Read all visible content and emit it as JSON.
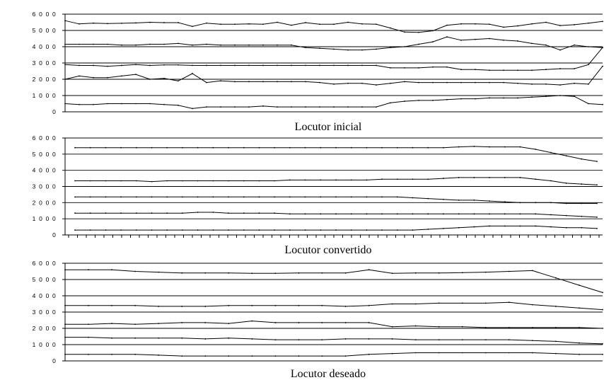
{
  "chart_data": [
    {
      "type": "line",
      "title": "Locutor inicial",
      "ylim": [
        0,
        6000
      ],
      "yticks": [
        "0",
        "1 0 0 0",
        "2 0 0 0",
        "3 0 0 0",
        "4 0 0 0",
        "5 0 0 0",
        "6 0 0 0"
      ],
      "grid": true,
      "series": [
        {
          "values": [
            5600,
            5400,
            5450,
            5420,
            5440,
            5460,
            5500,
            5480,
            5480,
            5250,
            5450,
            5380,
            5380,
            5400,
            5380,
            5500,
            5320,
            5480,
            5380,
            5380,
            5500,
            5400,
            5380,
            5150,
            4900,
            4880,
            4980,
            5320,
            5400,
            5400,
            5380,
            5200,
            5280,
            5400,
            5500,
            5300,
            5350,
            5450,
            5550
          ]
        },
        {
          "values": [
            4150,
            4150,
            4150,
            4150,
            4100,
            4100,
            4150,
            4150,
            4200,
            4100,
            4150,
            4100,
            4100,
            4100,
            4100,
            4100,
            4100,
            3950,
            3900,
            3850,
            3800,
            3800,
            3850,
            3950,
            4000,
            4150,
            4300,
            4600,
            4400,
            4450,
            4500,
            4400,
            4350,
            4200,
            4100,
            3800,
            4100,
            4000,
            3950
          ]
        },
        {
          "values": [
            2900,
            2850,
            2850,
            2800,
            2850,
            2900,
            2850,
            2880,
            2880,
            2850,
            2850,
            2850,
            2850,
            2850,
            2850,
            2850,
            2850,
            2850,
            2850,
            2850,
            2850,
            2850,
            2850,
            2700,
            2700,
            2700,
            2750,
            2750,
            2600,
            2600,
            2550,
            2550,
            2550,
            2550,
            2600,
            2650,
            2650,
            2900,
            3950
          ]
        },
        {
          "values": [
            2000,
            2200,
            2100,
            2100,
            2200,
            2300,
            2000,
            2050,
            1900,
            2350,
            1800,
            1900,
            1850,
            1850,
            1850,
            1850,
            1850,
            1850,
            1800,
            1700,
            1750,
            1750,
            1650,
            1750,
            1850,
            1800,
            1800,
            1800,
            1800,
            1800,
            1800,
            1800,
            1750,
            1700,
            1700,
            1650,
            1750,
            1700,
            2800
          ]
        },
        {
          "values": [
            500,
            450,
            450,
            500,
            500,
            500,
            500,
            450,
            400,
            200,
            300,
            300,
            300,
            300,
            350,
            300,
            300,
            300,
            300,
            300,
            300,
            300,
            300,
            550,
            650,
            700,
            700,
            750,
            800,
            800,
            850,
            850,
            850,
            900,
            950,
            1000,
            950,
            500,
            450
          ]
        }
      ]
    },
    {
      "type": "line",
      "title": "Locutor convertido",
      "ylim": [
        0,
        6000
      ],
      "yticks": [
        "0",
        "1 0 0 0",
        "2 0 0 0",
        "3 0 0 0",
        "4 0 0 0",
        "5 0 0 0",
        "6 0 0 0"
      ],
      "grid": true,
      "series": [
        {
          "values": [
            5400,
            5400,
            5400,
            5400,
            5400,
            5400,
            5400,
            5400,
            5400,
            5400,
            5400,
            5400,
            5400,
            5400,
            5400,
            5400,
            5400,
            5400,
            5400,
            5400,
            5400,
            5400,
            5400,
            5400,
            5400,
            5450,
            5480,
            5450,
            5450,
            5450,
            5300,
            5100,
            4900,
            4700,
            4550
          ]
        },
        {
          "values": [
            3350,
            3350,
            3350,
            3350,
            3350,
            3300,
            3350,
            3350,
            3350,
            3350,
            3350,
            3350,
            3350,
            3350,
            3400,
            3400,
            3400,
            3400,
            3400,
            3400,
            3450,
            3450,
            3450,
            3450,
            3500,
            3550,
            3550,
            3550,
            3550,
            3550,
            3450,
            3350,
            3200,
            3150,
            3100
          ]
        },
        {
          "values": [
            2350,
            2350,
            2350,
            2350,
            2350,
            2350,
            2350,
            2350,
            2350,
            2350,
            2350,
            2350,
            2350,
            2350,
            2350,
            2350,
            2350,
            2350,
            2350,
            2350,
            2350,
            2350,
            2300,
            2250,
            2200,
            2150,
            2150,
            2100,
            2050,
            2000,
            2000,
            2000,
            1950,
            1950,
            1950
          ]
        },
        {
          "values": [
            1350,
            1350,
            1350,
            1350,
            1350,
            1350,
            1350,
            1350,
            1400,
            1400,
            1350,
            1350,
            1350,
            1350,
            1300,
            1300,
            1300,
            1300,
            1300,
            1300,
            1300,
            1300,
            1300,
            1300,
            1300,
            1300,
            1300,
            1300,
            1300,
            1300,
            1300,
            1250,
            1200,
            1150,
            1100
          ]
        },
        {
          "values": [
            300,
            300,
            300,
            300,
            300,
            300,
            300,
            300,
            300,
            300,
            300,
            300,
            300,
            300,
            300,
            300,
            300,
            300,
            300,
            300,
            300,
            300,
            300,
            350,
            400,
            450,
            500,
            550,
            550,
            550,
            550,
            500,
            450,
            450,
            400
          ]
        }
      ]
    },
    {
      "type": "line",
      "title": "Locutor deseado",
      "ylim": [
        0,
        6000
      ],
      "yticks": [
        "0",
        "1 0 0 0",
        "2 0 0 0",
        "3 0 0 0",
        "4 0 0 0",
        "5 0 0 0",
        "6 0 0 0"
      ],
      "grid": true,
      "series": [
        {
          "values": [
            5600,
            5600,
            5600,
            5500,
            5450,
            5400,
            5400,
            5400,
            5380,
            5380,
            5400,
            5400,
            5400,
            5600,
            5380,
            5400,
            5400,
            5420,
            5450,
            5500,
            5550,
            5100,
            4650,
            4200
          ]
        },
        {
          "values": [
            3400,
            3400,
            3400,
            3400,
            3350,
            3350,
            3350,
            3400,
            3400,
            3400,
            3400,
            3400,
            3350,
            3400,
            3500,
            3500,
            3550,
            3550,
            3550,
            3600,
            3450,
            3350,
            3250,
            3150
          ]
        },
        {
          "values": [
            2250,
            2250,
            2300,
            2250,
            2300,
            2350,
            2350,
            2300,
            2450,
            2350,
            2350,
            2350,
            2350,
            2350,
            2100,
            2150,
            2100,
            2100,
            2050,
            2050,
            2050,
            2050,
            2050,
            2000
          ]
        },
        {
          "values": [
            1450,
            1450,
            1400,
            1400,
            1400,
            1400,
            1350,
            1400,
            1350,
            1300,
            1300,
            1300,
            1350,
            1350,
            1350,
            1300,
            1300,
            1300,
            1300,
            1300,
            1250,
            1200,
            1100,
            1050
          ]
        },
        {
          "values": [
            400,
            400,
            400,
            400,
            350,
            300,
            300,
            300,
            300,
            300,
            300,
            300,
            300,
            400,
            450,
            500,
            500,
            500,
            500,
            500,
            500,
            450,
            400,
            400
          ]
        }
      ]
    }
  ]
}
